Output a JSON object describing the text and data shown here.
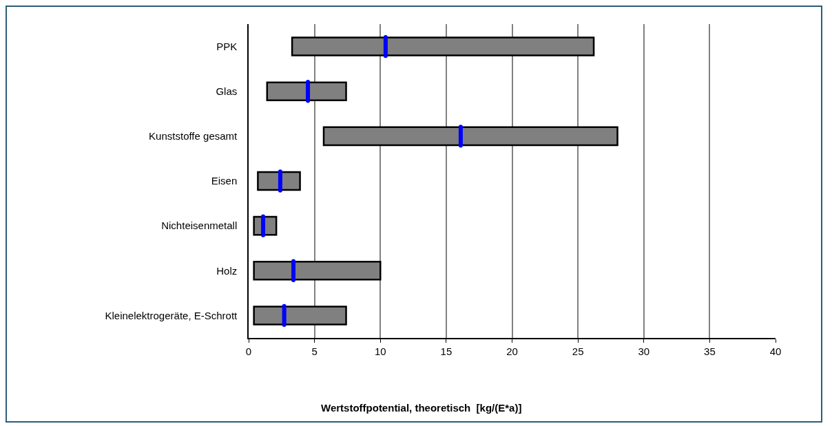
{
  "chart_data": {
    "type": "box",
    "orientation": "horizontal",
    "xlabel": "Wertstoffpotential, theoretisch  [kg/(E*a)]",
    "categories": [
      "PPK",
      "Glas",
      "Kunststoffe gesamt",
      "Eisen",
      "Nichteisenmetall",
      "Holz",
      "Kleinelektrogeräte, E-Schrott"
    ],
    "series": [
      {
        "color": "#808080",
        "boxes": [
          {
            "low": 3.3,
            "q1": 3.3,
            "median": 10.4,
            "q3": 26.2,
            "high": 26.2
          },
          {
            "low": 1.4,
            "q1": 1.4,
            "median": 4.5,
            "q3": 7.4,
            "high": 7.4
          },
          {
            "low": 5.7,
            "q1": 5.7,
            "median": 16.1,
            "q3": 28.0,
            "high": 28.0
          },
          {
            "low": 0.7,
            "q1": 0.7,
            "median": 2.4,
            "q3": 3.9,
            "high": 3.9
          },
          {
            "low": 0.4,
            "q1": 0.4,
            "median": 1.1,
            "q3": 2.1,
            "high": 2.1
          },
          {
            "low": 0.4,
            "q1": 0.4,
            "median": 3.4,
            "q3": 10.0,
            "high": 10.0
          },
          {
            "low": 0.4,
            "q1": 0.4,
            "median": 2.7,
            "q3": 7.4,
            "high": 7.4
          }
        ]
      }
    ],
    "xlim": [
      0,
      40
    ],
    "xticks": [
      0,
      5,
      10,
      15,
      20,
      25,
      30,
      35,
      40
    ],
    "grid": "x"
  }
}
